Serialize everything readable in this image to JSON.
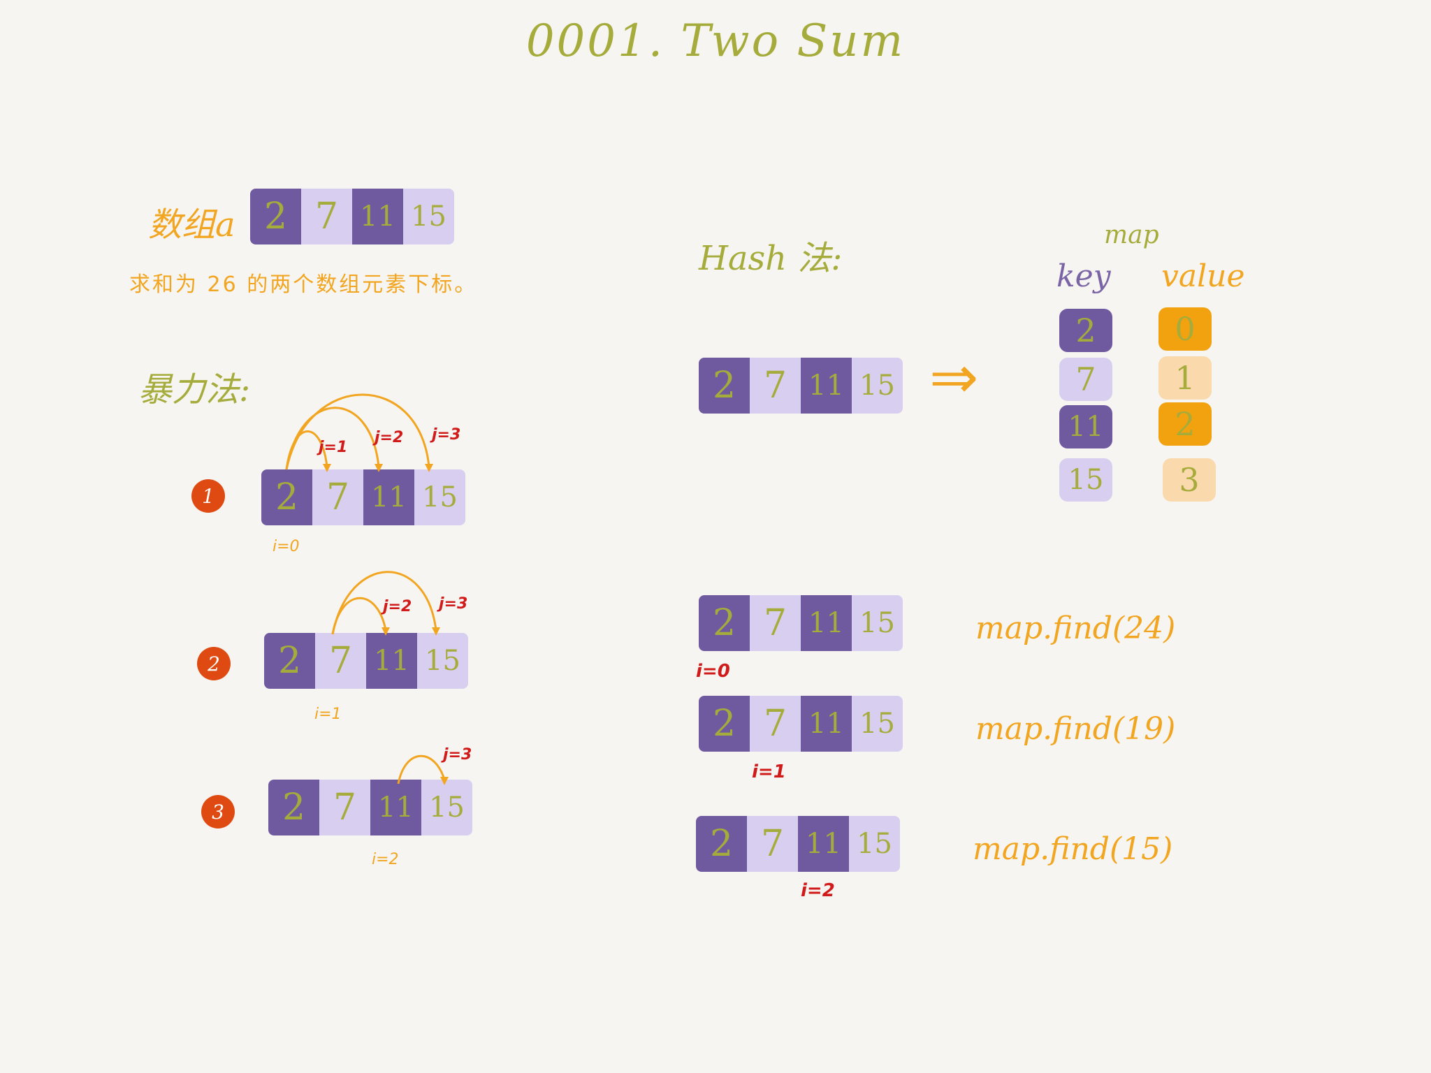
{
  "title": "0001. Two Sum",
  "left": {
    "array_label": "数组a",
    "array": [
      "2",
      "7",
      "11",
      "15"
    ],
    "description": "求和为 26 的两个数组元素下标。",
    "brute_title": "暴力法:",
    "steps": [
      {
        "badge": "1",
        "i_label": "i=0",
        "j_labels": [
          "j=1",
          "j=2",
          "j=3"
        ]
      },
      {
        "badge": "2",
        "i_label": "i=1",
        "j_labels": [
          "j=2",
          "j=3"
        ]
      },
      {
        "badge": "3",
        "i_label": "i=2",
        "j_labels": [
          "j=3"
        ]
      }
    ]
  },
  "right": {
    "hash_title": "Hash 法:",
    "map_label": "map",
    "key_header": "key",
    "value_header": "value",
    "keys": [
      "2",
      "7",
      "11",
      "15"
    ],
    "values": [
      "0",
      "1",
      "2",
      "3"
    ],
    "arrow": "⇒",
    "finds": [
      {
        "i_label": "i=0",
        "call": "map.find(24)"
      },
      {
        "i_label": "i=1",
        "call": "map.find(19)"
      },
      {
        "i_label": "i=2",
        "call": "map.find(15)"
      }
    ]
  },
  "colors": {
    "olive": "#a5ac3c",
    "orange": "#f2a520",
    "red": "#d11a1a",
    "purple_dark": "#6f5aa0",
    "purple_light": "#d8ceef",
    "badge": "#de4a12"
  }
}
